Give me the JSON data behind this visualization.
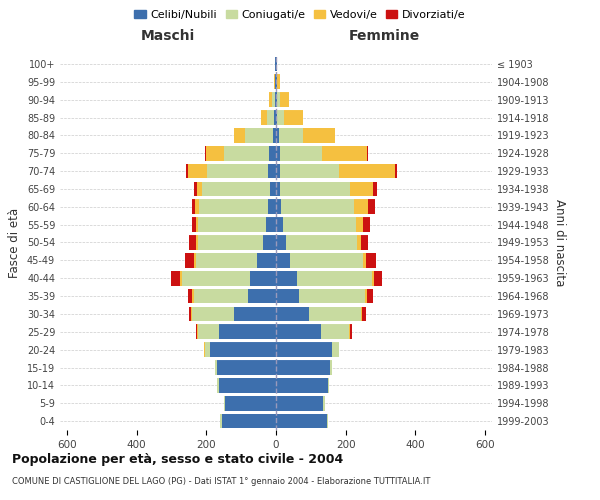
{
  "age_groups": [
    "0-4",
    "5-9",
    "10-14",
    "15-19",
    "20-24",
    "25-29",
    "30-34",
    "35-39",
    "40-44",
    "45-49",
    "50-54",
    "55-59",
    "60-64",
    "65-69",
    "70-74",
    "75-79",
    "80-84",
    "85-89",
    "90-94",
    "95-99",
    "100+"
  ],
  "birth_years": [
    "1999-2003",
    "1994-1998",
    "1989-1993",
    "1984-1988",
    "1979-1983",
    "1974-1978",
    "1969-1973",
    "1964-1968",
    "1959-1963",
    "1954-1958",
    "1949-1953",
    "1944-1948",
    "1939-1943",
    "1934-1938",
    "1929-1933",
    "1924-1928",
    "1919-1923",
    "1914-1918",
    "1909-1913",
    "1904-1908",
    "≤ 1903"
  ],
  "maschi": {
    "celibi": [
      155,
      145,
      165,
      170,
      190,
      165,
      120,
      80,
      75,
      55,
      38,
      28,
      22,
      18,
      22,
      20,
      10,
      5,
      3,
      2,
      2
    ],
    "coniugati": [
      5,
      5,
      5,
      5,
      15,
      60,
      120,
      155,
      195,
      175,
      185,
      195,
      200,
      195,
      175,
      130,
      80,
      20,
      8,
      2,
      0
    ],
    "vedovi": [
      0,
      0,
      0,
      0,
      2,
      3,
      3,
      5,
      5,
      5,
      8,
      8,
      10,
      15,
      55,
      50,
      30,
      18,
      8,
      2,
      0
    ],
    "divorziati": [
      0,
      0,
      0,
      0,
      0,
      3,
      8,
      12,
      25,
      25,
      18,
      10,
      10,
      8,
      5,
      3,
      0,
      0,
      0,
      0,
      0
    ]
  },
  "femmine": {
    "nubili": [
      145,
      135,
      148,
      155,
      160,
      130,
      95,
      65,
      60,
      40,
      28,
      20,
      15,
      12,
      12,
      12,
      8,
      4,
      3,
      2,
      2
    ],
    "coniugate": [
      5,
      5,
      5,
      5,
      20,
      80,
      150,
      190,
      215,
      210,
      205,
      210,
      210,
      200,
      170,
      120,
      70,
      18,
      8,
      2,
      0
    ],
    "vedove": [
      0,
      0,
      0,
      0,
      2,
      3,
      3,
      5,
      5,
      8,
      12,
      20,
      40,
      65,
      160,
      130,
      90,
      55,
      25,
      8,
      2
    ],
    "divorziate": [
      0,
      0,
      0,
      0,
      0,
      5,
      10,
      18,
      25,
      30,
      20,
      20,
      18,
      12,
      5,
      3,
      0,
      0,
      0,
      0,
      0
    ]
  },
  "colors": {
    "celibi": "#3d6fad",
    "coniugati": "#c8dba0",
    "vedovi": "#f5c040",
    "divorziati": "#cc1111"
  },
  "xlim": 620,
  "title": "Popolazione per età, sesso e stato civile - 2004",
  "subtitle": "COMUNE DI CASTIGLIONE DEL LAGO (PG) - Dati ISTAT 1° gennaio 2004 - Elaborazione TUTTITALIA.IT",
  "label_maschi": "Maschi",
  "label_femmine": "Femmine",
  "label_fasce": "Fasce di età",
  "label_anni": "Anni di nascita",
  "legend_labels": [
    "Celibi/Nubili",
    "Coniugati/e",
    "Vedovi/e",
    "Divorziati/e"
  ]
}
